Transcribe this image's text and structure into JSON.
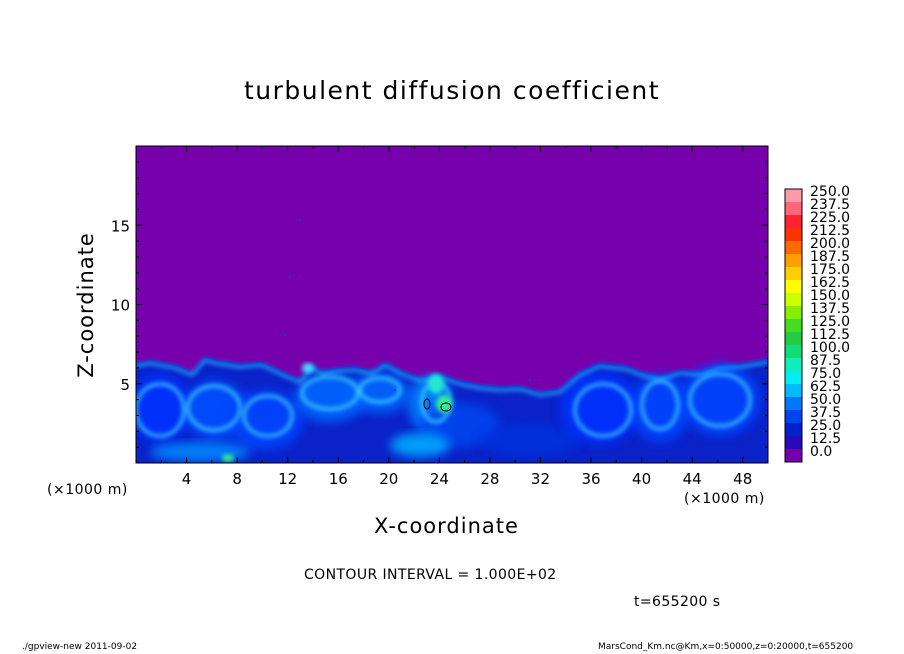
{
  "chart_data": {
    "type": "heatmap",
    "title": "turbulent diffusion coefficient",
    "xlabel": "X-coordinate",
    "ylabel": "Z-coordinate",
    "x_unit_left": "(×1000 m)",
    "x_unit_right": "(×1000 m)",
    "xlim": [
      0,
      50
    ],
    "ylim": [
      0,
      20
    ],
    "x_ticks": [
      "4",
      "8",
      "12",
      "16",
      "20",
      "24",
      "28",
      "32",
      "36",
      "40",
      "44",
      "48"
    ],
    "y_ticks": [
      "5",
      "10",
      "15"
    ],
    "background_color": "#7600ac",
    "colorbar": {
      "levels": [
        "250.0",
        "237.5",
        "225.0",
        "212.5",
        "200.0",
        "187.5",
        "175.0",
        "162.5",
        "150.0",
        "137.5",
        "125.0",
        "112.5",
        "100.0",
        "87.5",
        "75.0",
        "62.5",
        "50.0",
        "37.5",
        "25.0",
        "12.5",
        "0.0"
      ],
      "colors": [
        "#ff9aaa",
        "#ff6677",
        "#ff2233",
        "#ff3300",
        "#ff6a00",
        "#ffa000",
        "#ffd000",
        "#ffff00",
        "#ccff00",
        "#88ee00",
        "#44dd22",
        "#22cc44",
        "#11dd77",
        "#11eebb",
        "#00eeee",
        "#00bbff",
        "#0077ff",
        "#0044ee",
        "#0022cc",
        "#2a0ab8",
        "#7600ac"
      ]
    },
    "contour_interval": "CONTOUR INTERVAL = 1.000E+02",
    "time_label": "t=655200 s"
  },
  "footer": {
    "left": "./gpview-new   2011-09-02",
    "right": "MarsCond_Km.nc@Km,x=0:50000,z=0:20000,t=655200"
  }
}
